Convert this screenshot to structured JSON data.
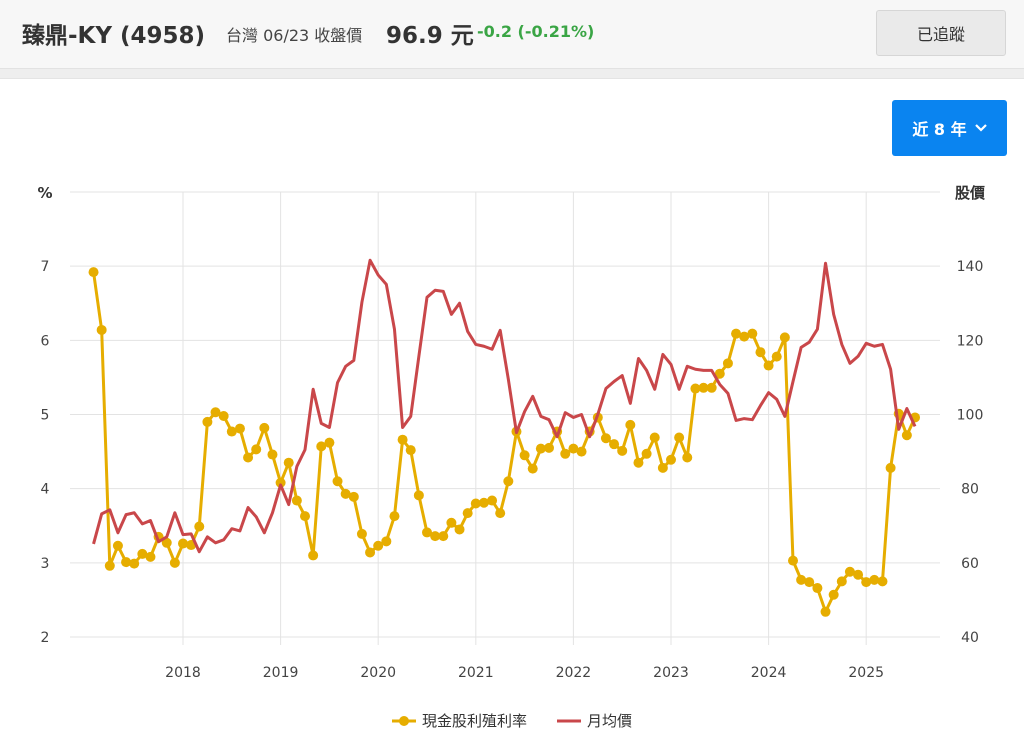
{
  "header": {
    "title": "臻鼎-KY (4958)",
    "market_date": "台灣 06/23 收盤價",
    "price": "96.9 元",
    "change": "-0.2 (-0.21%)",
    "follow_label": "已追蹤"
  },
  "range_selector": {
    "label": "近 8 年",
    "icon": "chevron-down-icon"
  },
  "colors": {
    "yield": "#e6ad00",
    "price": "#c9474a",
    "accent": "#0a84f0",
    "change": "#3aa545"
  },
  "chart_data": {
    "type": "line",
    "x_start": "2017-02",
    "x_interval": "monthly",
    "x_ticks": [
      "2018",
      "2019",
      "2020",
      "2021",
      "2022",
      "2023",
      "2024",
      "2025"
    ],
    "y_left": {
      "label": "%",
      "ticks": [
        "2",
        "3",
        "4",
        "5",
        "6",
        "7"
      ],
      "range": [
        2,
        8
      ]
    },
    "y_right": {
      "label": "股價",
      "ticks": [
        "40",
        "60",
        "80",
        "100",
        "120",
        "140"
      ],
      "range": [
        40,
        160
      ]
    },
    "grid": true,
    "legend_position": "bottom",
    "series": [
      {
        "name": "現金股利殖利率",
        "axis": "left",
        "markers": true,
        "values": [
          6.92,
          6.14,
          2.96,
          3.23,
          3.01,
          2.99,
          3.12,
          3.08,
          3.35,
          3.27,
          3.0,
          3.26,
          3.24,
          3.49,
          4.9,
          5.03,
          4.98,
          4.77,
          4.81,
          4.42,
          4.53,
          4.82,
          4.46,
          4.08,
          4.35,
          3.84,
          3.63,
          3.1,
          4.57,
          4.62,
          4.1,
          3.93,
          3.89,
          3.39,
          3.14,
          3.23,
          3.29,
          3.63,
          4.66,
          4.52,
          3.91,
          3.41,
          3.36,
          3.36,
          3.54,
          3.45,
          3.67,
          3.8,
          3.81,
          3.84,
          3.67,
          4.1,
          4.77,
          4.45,
          4.27,
          4.54,
          4.55,
          4.77,
          4.47,
          4.54,
          4.5,
          4.77,
          4.96,
          4.68,
          4.6,
          4.51,
          4.86,
          4.35,
          4.47,
          4.69,
          4.28,
          4.39,
          4.69,
          4.42,
          5.35,
          5.36,
          5.36,
          5.55,
          5.69,
          6.09,
          6.05,
          6.09,
          5.84,
          5.66,
          5.78,
          6.04,
          3.03,
          2.77,
          2.74,
          2.66,
          2.34,
          2.57,
          2.75,
          2.88,
          2.84,
          2.74,
          2.77,
          2.75,
          4.28,
          5.01,
          4.72,
          4.96
        ]
      },
      {
        "name": "月均價",
        "axis": "right",
        "markers": false,
        "values": [
          65.1,
          73.2,
          74.3,
          68.1,
          73,
          73.5,
          70.5,
          71.4,
          65.7,
          67,
          73.5,
          67.6,
          67.8,
          63,
          67,
          65.4,
          66.2,
          69.2,
          68.6,
          74.9,
          72.4,
          68.1,
          73.5,
          81,
          75.7,
          86,
          90.5,
          106.8,
          97.6,
          96.5,
          108.6,
          113,
          114.6,
          130.3,
          141.6,
          137.6,
          135.1,
          123,
          96.5,
          99.5,
          115.7,
          131.6,
          133.5,
          133.2,
          127,
          130,
          122.4,
          118.9,
          118.4,
          117.6,
          122.7,
          109.5,
          95.1,
          100.8,
          104.9,
          99.5,
          98.6,
          94,
          100.5,
          99.2,
          100,
          94,
          100,
          107,
          108.9,
          110.5,
          103,
          115.1,
          111.9,
          106.8,
          116.2,
          113.5,
          106.8,
          113,
          112.2,
          111.9,
          111.9,
          108.1,
          105.7,
          98.4,
          98.9,
          98.6,
          102.4,
          105.9,
          104.1,
          99.5,
          108.9,
          118.1,
          119.5,
          123,
          140.8,
          127,
          118.9,
          113.8,
          115.7,
          119.2,
          118.4,
          118.9,
          112.2,
          96,
          101.6,
          96.8
        ]
      }
    ]
  }
}
